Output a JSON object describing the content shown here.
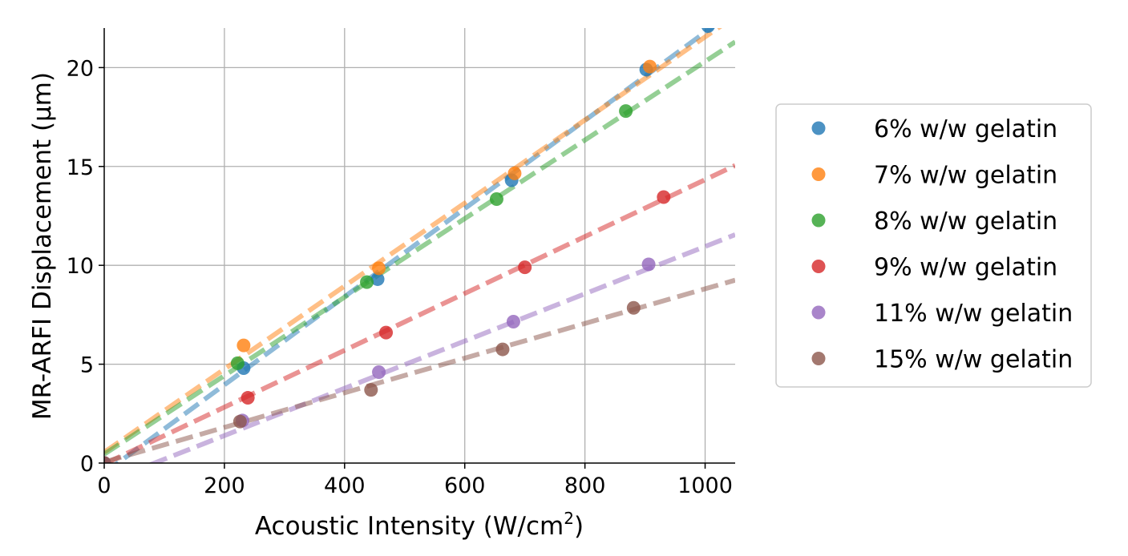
{
  "chart_data": {
    "type": "scatter",
    "title": "",
    "xlabel": "Acoustic Intensity (W/cm",
    "xlabel_sup": "2",
    "xlabel_end": ")",
    "ylabel": "MR-ARFI Displacement (μm)",
    "xlim": [
      0,
      1050
    ],
    "ylim": [
      0,
      22
    ],
    "xticks": [
      0,
      200,
      400,
      600,
      800,
      1000
    ],
    "yticks": [
      0,
      5,
      10,
      15,
      20
    ],
    "grid": true,
    "legend_position": "right",
    "series": [
      {
        "name": "6% w/w gelatin",
        "color": "#1f77b4",
        "points": [
          [
            0,
            0
          ],
          [
            232,
            4.8
          ],
          [
            455,
            9.3
          ],
          [
            678,
            14.3
          ],
          [
            902,
            19.9
          ],
          [
            1005,
            22.1
          ]
        ],
        "fit": [
          [
            0,
            -0.5
          ],
          [
            1050,
            22.9
          ]
        ]
      },
      {
        "name": "7% w/w gelatin",
        "color": "#ff7f0e",
        "points": [
          [
            0,
            0
          ],
          [
            232,
            5.95
          ],
          [
            457,
            9.85
          ],
          [
            683,
            14.65
          ],
          [
            908,
            20.05
          ]
        ],
        "fit": [
          [
            0,
            0.55
          ],
          [
            1050,
            22.6
          ]
        ]
      },
      {
        "name": "8% w/w gelatin",
        "color": "#2ca02c",
        "points": [
          [
            0,
            0
          ],
          [
            222,
            5.05
          ],
          [
            437,
            9.15
          ],
          [
            653,
            13.35
          ],
          [
            868,
            17.8
          ]
        ],
        "fit": [
          [
            0,
            0.45
          ],
          [
            1050,
            21.3
          ]
        ]
      },
      {
        "name": "9% w/w gelatin",
        "color": "#d62728",
        "points": [
          [
            0,
            0
          ],
          [
            239,
            3.3
          ],
          [
            469,
            6.6
          ],
          [
            700,
            9.9
          ],
          [
            931,
            13.45
          ]
        ],
        "fit": [
          [
            0,
            -0.05
          ],
          [
            1050,
            15.05
          ]
        ]
      },
      {
        "name": "11% w/w gelatin",
        "color": "#9467bd",
        "points": [
          [
            0,
            0
          ],
          [
            230,
            2.15
          ],
          [
            457,
            4.6
          ],
          [
            681,
            7.15
          ],
          [
            906,
            10.05
          ]
        ],
        "fit": [
          [
            0,
            -1.0
          ],
          [
            1050,
            11.55
          ]
        ]
      },
      {
        "name": "15% w/w gelatin",
        "color": "#8c564b",
        "points": [
          [
            0,
            0
          ],
          [
            226,
            2.1
          ],
          [
            444,
            3.7
          ],
          [
            663,
            5.75
          ],
          [
            881,
            7.85
          ]
        ],
        "fit": [
          [
            0,
            0.05
          ],
          [
            1050,
            9.25
          ]
        ]
      }
    ]
  }
}
